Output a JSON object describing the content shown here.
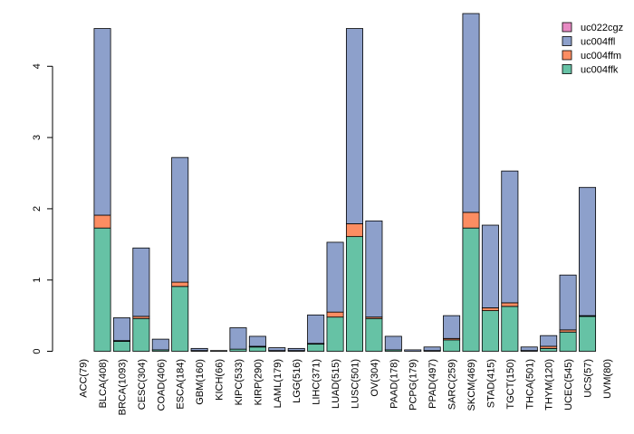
{
  "chart_data": {
    "type": "bar",
    "stacked": true,
    "title": "",
    "xlabel": "",
    "ylabel": "",
    "ylim": [
      0,
      4.75
    ],
    "yticks": [
      0,
      1,
      2,
      3,
      4
    ],
    "grid": false,
    "legend_position": "top-right",
    "categories": [
      "ACC(79)",
      "BLCA(408)",
      "BRCA(1093)",
      "CESC(304)",
      "COAD(406)",
      "ESCA(184)",
      "GBM(160)",
      "KICH(66)",
      "KIPC(533)",
      "KIRP(290)",
      "LAML(179)",
      "LGG(516)",
      "LIHC(371)",
      "LUAD(515)",
      "LUSC(501)",
      "OV(304)",
      "PAAD(178)",
      "PCPG(179)",
      "PPAD(497)",
      "SARC(259)",
      "SKCM(469)",
      "STAD(415)",
      "TGCT(150)",
      "THCA(501)",
      "THYM(120)",
      "UCEC(545)",
      "UCS(57)",
      "UVM(80)"
    ],
    "series": [
      {
        "name": "uc004ffk",
        "color": "#66c2a5",
        "values": [
          0.0,
          1.73,
          0.14,
          0.46,
          0.02,
          0.91,
          0.01,
          0.0,
          0.03,
          0.06,
          0.01,
          0.01,
          0.1,
          0.48,
          1.61,
          0.46,
          0.02,
          0.0,
          0.01,
          0.16,
          1.73,
          0.57,
          0.63,
          0.01,
          0.04,
          0.27,
          0.49,
          0.0
        ]
      },
      {
        "name": "uc004ffm",
        "color": "#fc8d62",
        "values": [
          0.0,
          0.18,
          0.01,
          0.03,
          0.0,
          0.06,
          0.0,
          0.0,
          0.0,
          0.01,
          0.0,
          0.0,
          0.01,
          0.07,
          0.18,
          0.02,
          0.0,
          0.0,
          0.0,
          0.02,
          0.22,
          0.04,
          0.05,
          0.0,
          0.03,
          0.03,
          0.01,
          0.0
        ]
      },
      {
        "name": "uc004ffl",
        "color": "#8da0cb",
        "values": [
          0.0,
          2.62,
          0.32,
          0.96,
          0.15,
          1.75,
          0.03,
          0.01,
          0.3,
          0.14,
          0.04,
          0.03,
          0.4,
          0.98,
          2.74,
          1.35,
          0.19,
          0.02,
          0.05,
          0.32,
          2.79,
          1.16,
          1.85,
          0.05,
          0.15,
          0.77,
          1.8,
          0.0
        ]
      },
      {
        "name": "uc022cgz",
        "color": "#e78ac3",
        "values": [
          0.0,
          0.0,
          0.0,
          0.0,
          0.0,
          0.0,
          0.0,
          0.0,
          0.0,
          0.0,
          0.0,
          0.0,
          0.0,
          0.0,
          0.0,
          0.0,
          0.0,
          0.0,
          0.0,
          0.0,
          0.0,
          0.0,
          0.0,
          0.0,
          0.0,
          0.0,
          0.0,
          0.0
        ]
      }
    ]
  }
}
